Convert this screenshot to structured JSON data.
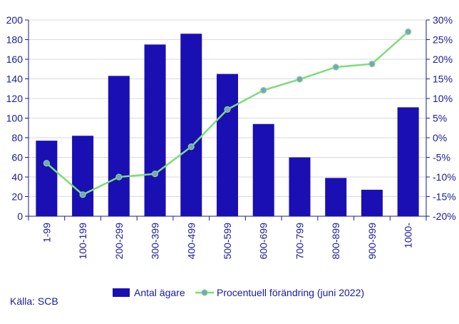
{
  "chart_data": {
    "type": "bar",
    "categories": [
      "1-99",
      "100-199",
      "200-299",
      "300-399",
      "400-499",
      "500-599",
      "600-699",
      "700-799",
      "800-899",
      "900-999",
      "1000-"
    ],
    "series": [
      {
        "name": "Antal ägare",
        "type": "bar",
        "axis": "left",
        "values": [
          77,
          82,
          143,
          175,
          186,
          145,
          94,
          60,
          39,
          27,
          111
        ]
      },
      {
        "name": "Procentuell förändring (juni 2022)",
        "type": "line",
        "axis": "right",
        "values": [
          -6.5,
          -14.5,
          -10,
          -9.2,
          -2.3,
          7.2,
          12.1,
          14.9,
          18,
          18.8,
          27
        ]
      }
    ],
    "y_left": {
      "ylim": [
        0,
        200
      ],
      "ticks": [
        0,
        20,
        40,
        60,
        80,
        100,
        120,
        140,
        160,
        180,
        200
      ],
      "tick_labels": [
        "0",
        "20",
        "40",
        "60",
        "80",
        "100",
        "120",
        "140",
        "160",
        "180",
        "200"
      ]
    },
    "y_right": {
      "ylim": [
        -20,
        30
      ],
      "ticks": [
        -20,
        -15,
        -10,
        -5,
        0,
        5,
        10,
        15,
        20,
        25,
        30
      ],
      "tick_labels": [
        "-20%",
        "-15%",
        "-10%",
        "-5%",
        "0%",
        "5%",
        "10%",
        "15%",
        "20%",
        "25%",
        "30%"
      ]
    },
    "grid": true,
    "legend_position": "bottom",
    "colors": {
      "bar": "#1a0fb3",
      "line": "#7ddc7a",
      "marker": "#7f9ec9",
      "text": "#1a1a99",
      "grid": "#d9d9d9"
    }
  },
  "source": "Källa: SCB"
}
